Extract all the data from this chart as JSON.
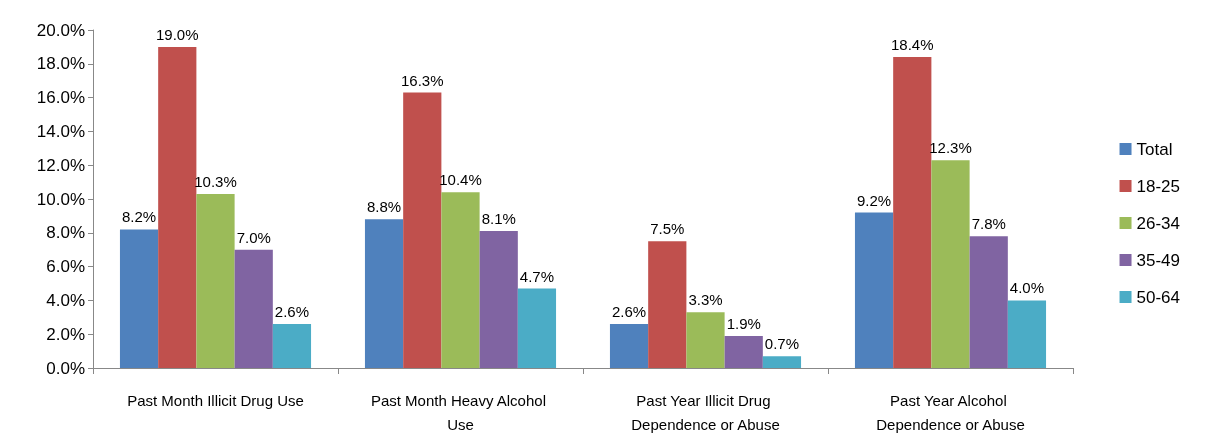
{
  "chart_data": {
    "type": "bar",
    "categories": [
      "Past Month Illicit Drug Use",
      "Past Month Heavy Alcohol Use",
      "Past Year Illicit Drug Dependence or Abuse",
      "Past Year Alcohol Dependence or Abuse"
    ],
    "series": [
      {
        "name": "Total",
        "color": "#4f81bd",
        "values": [
          8.2,
          8.8,
          2.6,
          9.2
        ],
        "value_labels": [
          "8.2%",
          "8.8%",
          "2.6%",
          "9.2%"
        ]
      },
      {
        "name": "18-25",
        "color": "#c0504d",
        "values": [
          19.0,
          16.3,
          7.5,
          18.4
        ],
        "value_labels": [
          "19.0%",
          "16.3%",
          "7.5%",
          "18.4%"
        ]
      },
      {
        "name": "26-34",
        "color": "#9bbb59",
        "values": [
          10.3,
          10.4,
          3.3,
          12.3
        ],
        "value_labels": [
          "10.3%",
          "10.4%",
          "3.3%",
          "12.3%"
        ]
      },
      {
        "name": "35-49",
        "color": "#8064a2",
        "values": [
          7.0,
          8.1,
          1.9,
          7.8
        ],
        "value_labels": [
          "7.0%",
          "8.1%",
          "1.9%",
          "7.8%"
        ]
      },
      {
        "name": "50-64",
        "color": "#4bacc6",
        "values": [
          2.6,
          4.7,
          0.7,
          4.0
        ],
        "value_labels": [
          "2.6%",
          "4.7%",
          "0.7%",
          "4.0%"
        ]
      }
    ],
    "ylim": [
      0,
      20
    ],
    "yticks": [
      {
        "value": 0,
        "label": "0.0%"
      },
      {
        "value": 2,
        "label": "2.0%"
      },
      {
        "value": 4,
        "label": "4.0%"
      },
      {
        "value": 6,
        "label": "6.0%"
      },
      {
        "value": 8,
        "label": "8.0%"
      },
      {
        "value": 10,
        "label": "10.0%"
      },
      {
        "value": 12,
        "label": "12.0%"
      },
      {
        "value": 14,
        "label": "14.0%"
      },
      {
        "value": 16,
        "label": "16.0%"
      },
      {
        "value": 18,
        "label": "18.0%"
      },
      {
        "value": 20,
        "label": "20.0%"
      }
    ],
    "grid": false,
    "legend": "right"
  }
}
